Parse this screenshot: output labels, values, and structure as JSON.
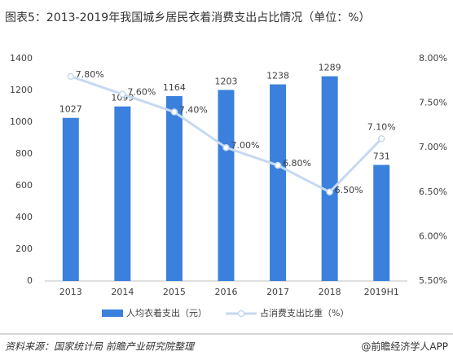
{
  "chart_data": {
    "type": "bar-line",
    "title": "图表5：2013-2019年我国城乡居民衣着消费支出占比情况（单位：%）",
    "categories": [
      "2013",
      "2014",
      "2015",
      "2016",
      "2017",
      "2018",
      "2019H1"
    ],
    "series": [
      {
        "name": "人均衣着支出（元）",
        "type": "bar",
        "color": "#3a80dc",
        "values": [
          1027,
          1099,
          1164,
          1203,
          1238,
          1289,
          731
        ]
      },
      {
        "name": "占消费支出比重（%）",
        "type": "line",
        "axis": "y2",
        "color": "#c6d9f1",
        "values": [
          7.8,
          7.6,
          7.4,
          7.0,
          6.8,
          6.5,
          7.1
        ],
        "value_labels": [
          "7.80%",
          "7.60%",
          "7.40%",
          "7.00%",
          "6.80%",
          "6.50%",
          "7.10%"
        ]
      }
    ],
    "ylim": [
      0,
      1400
    ],
    "yticks": [
      0,
      200,
      400,
      600,
      800,
      1000,
      1200,
      1400
    ],
    "y2lim": [
      5.5,
      8.0
    ],
    "y2ticks": [
      {
        "value": 5.5,
        "label": "5.50%"
      },
      {
        "value": 6.0,
        "label": "6.00%"
      },
      {
        "value": 6.5,
        "label": "6.50%"
      },
      {
        "value": 7.0,
        "label": "7.00%"
      },
      {
        "value": 7.5,
        "label": "7.50%"
      },
      {
        "value": 8.0,
        "label": "8.00%"
      }
    ]
  },
  "footer": {
    "source": "资料来源：国家统计局 前瞻产业研究院整理",
    "brand": "@前瞻经济学人APP"
  }
}
